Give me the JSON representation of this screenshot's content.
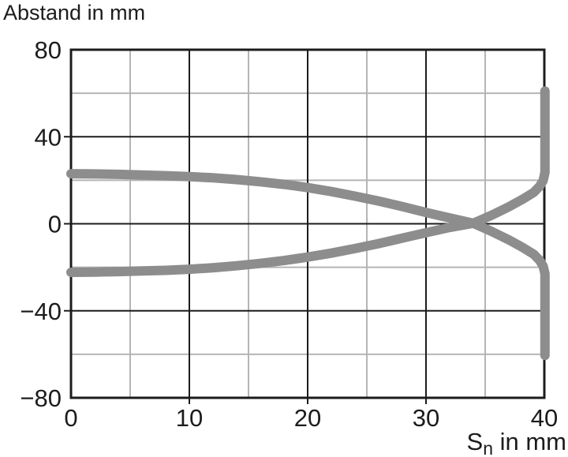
{
  "title": "Abstand in mm",
  "chart_data": {
    "type": "line",
    "title": "Abstand in mm",
    "ylabel": "Abstand in mm",
    "xlabel_prefix": "S",
    "xlabel_sub": "n",
    "xlabel_suffix": " in mm",
    "xlabel_full": "Sn in mm",
    "xlim": [
      0,
      40
    ],
    "ylim": [
      -80,
      80
    ],
    "x_major_ticks": [
      0,
      10,
      20,
      30,
      40
    ],
    "x_tick_labels": [
      "0",
      "10",
      "20",
      "30",
      "40"
    ],
    "x_minor_gridlines": [
      5,
      15,
      25,
      35
    ],
    "y_major_ticks": [
      80,
      40,
      0,
      -40,
      -80
    ],
    "y_tick_labels": [
      "80",
      "40",
      "0",
      "−40",
      "−80"
    ],
    "y_minor_gridlines": [
      60,
      20,
      -20,
      -60
    ],
    "grid": "major-black minor-gray",
    "legend": "none",
    "series": [
      {
        "name": "upper-detection-limit",
        "points": [
          [
            0,
            23
          ],
          [
            2,
            22.9
          ],
          [
            4,
            22.7
          ],
          [
            6,
            22.4
          ],
          [
            8,
            22.1
          ],
          [
            10,
            21.7
          ],
          [
            12,
            21.1
          ],
          [
            14,
            20.3
          ],
          [
            16,
            19.3
          ],
          [
            18,
            18.1
          ],
          [
            20,
            16.6
          ],
          [
            22,
            14.8
          ],
          [
            24,
            12.7
          ],
          [
            26,
            10.4
          ],
          [
            28,
            7.9
          ],
          [
            30,
            5.2
          ],
          [
            32,
            2.7
          ],
          [
            34,
            0.2
          ],
          [
            35.5,
            -3.4
          ],
          [
            37,
            -7.4
          ],
          [
            38.2,
            -11
          ],
          [
            39.1,
            -14
          ],
          [
            39.6,
            -16.8
          ],
          [
            39.9,
            -19.5
          ],
          [
            40.05,
            -23
          ],
          [
            40.05,
            -60.5
          ]
        ]
      },
      {
        "name": "lower-detection-limit",
        "points": [
          [
            0,
            -22.3
          ],
          [
            2,
            -22.2
          ],
          [
            4,
            -22
          ],
          [
            6,
            -21.7
          ],
          [
            8,
            -21.4
          ],
          [
            10,
            -20.9
          ],
          [
            12,
            -20.2
          ],
          [
            14,
            -19.3
          ],
          [
            16,
            -18.2
          ],
          [
            18,
            -16.9
          ],
          [
            20,
            -15.3
          ],
          [
            22,
            -13.5
          ],
          [
            24,
            -11.4
          ],
          [
            26,
            -9.1
          ],
          [
            28,
            -6.6
          ],
          [
            30,
            -4.1
          ],
          [
            32,
            -1.7
          ],
          [
            34,
            0.2
          ],
          [
            35.5,
            3.8
          ],
          [
            37,
            7.8
          ],
          [
            38.2,
            11.4
          ],
          [
            39.1,
            14.4
          ],
          [
            39.6,
            17.2
          ],
          [
            39.9,
            19.9
          ],
          [
            40.05,
            23.5
          ],
          [
            40.05,
            61
          ]
        ]
      }
    ],
    "colors": {
      "curve": "#8d8d8d",
      "grid_major": "#1c1c1c",
      "grid_minor": "#b5b5b5",
      "border": "#1c1c1c",
      "text": "#1c1c1c",
      "background": "#ffffff"
    }
  }
}
